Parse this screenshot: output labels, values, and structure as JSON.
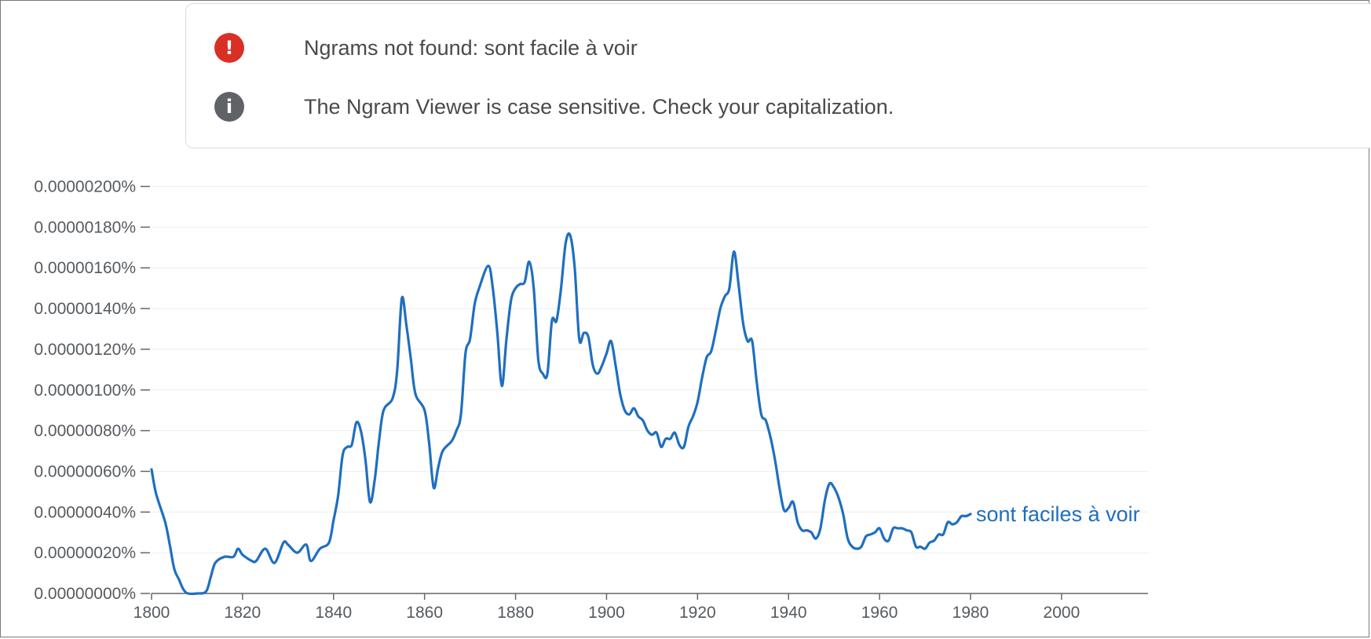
{
  "notices": [
    {
      "icon": "error-icon",
      "glyph": "!",
      "color": "#d93025",
      "text": "Ngrams not found: sont facile à voir"
    },
    {
      "icon": "info-icon",
      "glyph": "i",
      "color": "#5f6368",
      "text": "The Ngram Viewer is case sensitive. Check your capitalization."
    }
  ],
  "chart_data": {
    "type": "line",
    "title": "",
    "xlabel": "",
    "ylabel": "",
    "xlim": [
      1800,
      2019
    ],
    "ylim": [
      0,
      2e-06
    ],
    "x_ticks": [
      1800,
      1820,
      1840,
      1860,
      1880,
      1900,
      1920,
      1940,
      1960,
      1980,
      2000
    ],
    "x_tick_labels": [
      "1800",
      "1820",
      "1840",
      "1860",
      "1880",
      "1900",
      "1920",
      "1940",
      "1960",
      "1980",
      "2000"
    ],
    "y_ticks": [
      0,
      2e-07,
      4e-07,
      6e-07,
      8e-07,
      1e-06,
      1.2e-06,
      1.4e-06,
      1.6e-06,
      1.8e-06,
      2e-06
    ],
    "y_tick_labels": [
      "0.00000000%",
      "0.00000020%",
      "0.00000040%",
      "0.00000060%",
      "0.00000080%",
      "0.00000100%",
      "0.00000120%",
      "0.00000140%",
      "0.00000160%",
      "0.00000180%",
      "0.00000200%"
    ],
    "grid": true,
    "series": [
      {
        "name": "sont faciles à voir",
        "color": "#1f6fbf",
        "points": [
          [
            1800,
            6.1e-07
          ],
          [
            1801,
            4.9e-07
          ],
          [
            1803,
            3.5e-07
          ],
          [
            1804,
            2.4e-07
          ],
          [
            1805,
            1.2e-07
          ],
          [
            1806,
            7e-08
          ],
          [
            1807,
            2e-08
          ],
          [
            1808,
            0.0
          ],
          [
            1810,
            0.0
          ],
          [
            1812,
            1e-08
          ],
          [
            1813,
            8e-08
          ],
          [
            1814,
            1.5e-07
          ],
          [
            1816,
            1.8e-07
          ],
          [
            1818,
            1.8e-07
          ],
          [
            1819,
            2.2e-07
          ],
          [
            1820,
            1.9e-07
          ],
          [
            1822,
            1.6e-07
          ],
          [
            1823,
            1.6e-07
          ],
          [
            1825,
            2.2e-07
          ],
          [
            1827,
            1.5e-07
          ],
          [
            1829,
            2.5e-07
          ],
          [
            1830,
            2.4e-07
          ],
          [
            1832,
            2e-07
          ],
          [
            1834,
            2.4e-07
          ],
          [
            1835,
            1.6e-07
          ],
          [
            1837,
            2.2e-07
          ],
          [
            1839,
            2.5e-07
          ],
          [
            1840,
            3.6e-07
          ],
          [
            1841,
            4.8e-07
          ],
          [
            1842,
            6.8e-07
          ],
          [
            1843,
            7.2e-07
          ],
          [
            1844,
            7.3e-07
          ],
          [
            1845,
            8.4e-07
          ],
          [
            1846,
            8e-07
          ],
          [
            1847,
            6.6e-07
          ],
          [
            1848,
            4.5e-07
          ],
          [
            1849,
            5.5e-07
          ],
          [
            1850,
            7.5e-07
          ],
          [
            1851,
            9e-07
          ],
          [
            1853,
            9.6e-07
          ],
          [
            1854,
            1.1e-06
          ],
          [
            1855,
            1.45e-06
          ],
          [
            1856,
            1.32e-06
          ],
          [
            1857,
            1.15e-06
          ],
          [
            1858,
            9.8e-07
          ],
          [
            1860,
            9e-07
          ],
          [
            1861,
            7.4e-07
          ],
          [
            1862,
            5.2e-07
          ],
          [
            1863,
            6.2e-07
          ],
          [
            1864,
            7e-07
          ],
          [
            1866,
            7.5e-07
          ],
          [
            1867,
            8e-07
          ],
          [
            1868,
            8.8e-07
          ],
          [
            1869,
            1.18e-06
          ],
          [
            1870,
            1.25e-06
          ],
          [
            1871,
            1.42e-06
          ],
          [
            1872,
            1.5e-06
          ],
          [
            1874,
            1.61e-06
          ],
          [
            1875,
            1.5e-06
          ],
          [
            1876,
            1.28e-06
          ],
          [
            1877,
            1.02e-06
          ],
          [
            1878,
            1.25e-06
          ],
          [
            1879,
            1.44e-06
          ],
          [
            1880,
            1.5e-06
          ],
          [
            1881,
            1.52e-06
          ],
          [
            1882,
            1.53e-06
          ],
          [
            1883,
            1.63e-06
          ],
          [
            1884,
            1.5e-06
          ],
          [
            1885,
            1.15e-06
          ],
          [
            1886,
            1.08e-06
          ],
          [
            1887,
            1.08e-06
          ],
          [
            1888,
            1.34e-06
          ],
          [
            1889,
            1.34e-06
          ],
          [
            1890,
            1.5e-06
          ],
          [
            1891,
            1.72e-06
          ],
          [
            1892,
            1.76e-06
          ],
          [
            1893,
            1.6e-06
          ],
          [
            1894,
            1.25e-06
          ],
          [
            1895,
            1.28e-06
          ],
          [
            1896,
            1.26e-06
          ],
          [
            1897,
            1.12e-06
          ],
          [
            1898,
            1.08e-06
          ],
          [
            1899,
            1.12e-06
          ],
          [
            1900,
            1.18e-06
          ],
          [
            1901,
            1.24e-06
          ],
          [
            1902,
            1.12e-06
          ],
          [
            1903,
            9.8e-07
          ],
          [
            1904,
            9e-07
          ],
          [
            1905,
            8.8e-07
          ],
          [
            1906,
            9.1e-07
          ],
          [
            1907,
            8.7e-07
          ],
          [
            1908,
            8.5e-07
          ],
          [
            1909,
            8e-07
          ],
          [
            1910,
            7.8e-07
          ],
          [
            1911,
            7.9e-07
          ],
          [
            1912,
            7.2e-07
          ],
          [
            1913,
            7.6e-07
          ],
          [
            1914,
            7.6e-07
          ],
          [
            1915,
            7.9e-07
          ],
          [
            1916,
            7.3e-07
          ],
          [
            1917,
            7.2e-07
          ],
          [
            1918,
            8.2e-07
          ],
          [
            1919,
            8.7e-07
          ],
          [
            1920,
            9.4e-07
          ],
          [
            1921,
            1.06e-06
          ],
          [
            1922,
            1.16e-06
          ],
          [
            1923,
            1.19e-06
          ],
          [
            1924,
            1.29e-06
          ],
          [
            1925,
            1.4e-06
          ],
          [
            1926,
            1.46e-06
          ],
          [
            1927,
            1.5e-06
          ],
          [
            1928,
            1.68e-06
          ],
          [
            1929,
            1.52e-06
          ],
          [
            1930,
            1.33e-06
          ],
          [
            1931,
            1.24e-06
          ],
          [
            1932,
            1.24e-06
          ],
          [
            1933,
            1.04e-06
          ],
          [
            1934,
            8.8e-07
          ],
          [
            1935,
            8.5e-07
          ],
          [
            1936,
            7.7e-07
          ],
          [
            1937,
            6.6e-07
          ],
          [
            1938,
            5.2e-07
          ],
          [
            1939,
            4.1e-07
          ],
          [
            1940,
            4.2e-07
          ],
          [
            1941,
            4.5e-07
          ],
          [
            1942,
            3.5e-07
          ],
          [
            1943,
            3.1e-07
          ],
          [
            1944,
            3.1e-07
          ],
          [
            1945,
            3e-07
          ],
          [
            1946,
            2.7e-07
          ],
          [
            1947,
            3.2e-07
          ],
          [
            1948,
            4.6e-07
          ],
          [
            1949,
            5.4e-07
          ],
          [
            1950,
            5.2e-07
          ],
          [
            1951,
            4.7e-07
          ],
          [
            1952,
            3.9e-07
          ],
          [
            1953,
            2.7e-07
          ],
          [
            1954,
            2.3e-07
          ],
          [
            1955,
            2.2e-07
          ],
          [
            1956,
            2.3e-07
          ],
          [
            1957,
            2.8e-07
          ],
          [
            1958,
            2.9e-07
          ],
          [
            1959,
            3e-07
          ],
          [
            1960,
            3.2e-07
          ],
          [
            1961,
            2.7e-07
          ],
          [
            1962,
            2.6e-07
          ],
          [
            1963,
            3.2e-07
          ],
          [
            1964,
            3.2e-07
          ],
          [
            1965,
            3.2e-07
          ],
          [
            1966,
            3.1e-07
          ],
          [
            1967,
            3e-07
          ],
          [
            1968,
            2.3e-07
          ],
          [
            1969,
            2.3e-07
          ],
          [
            1970,
            2.2e-07
          ],
          [
            1971,
            2.5e-07
          ],
          [
            1972,
            2.6e-07
          ],
          [
            1973,
            2.9e-07
          ],
          [
            1974,
            2.9e-07
          ],
          [
            1975,
            3.5e-07
          ],
          [
            1976,
            3.4e-07
          ],
          [
            1977,
            3.5e-07
          ],
          [
            1978,
            3.8e-07
          ],
          [
            1979,
            3.8e-07
          ],
          [
            1980,
            3.9e-07
          ]
        ]
      }
    ]
  }
}
